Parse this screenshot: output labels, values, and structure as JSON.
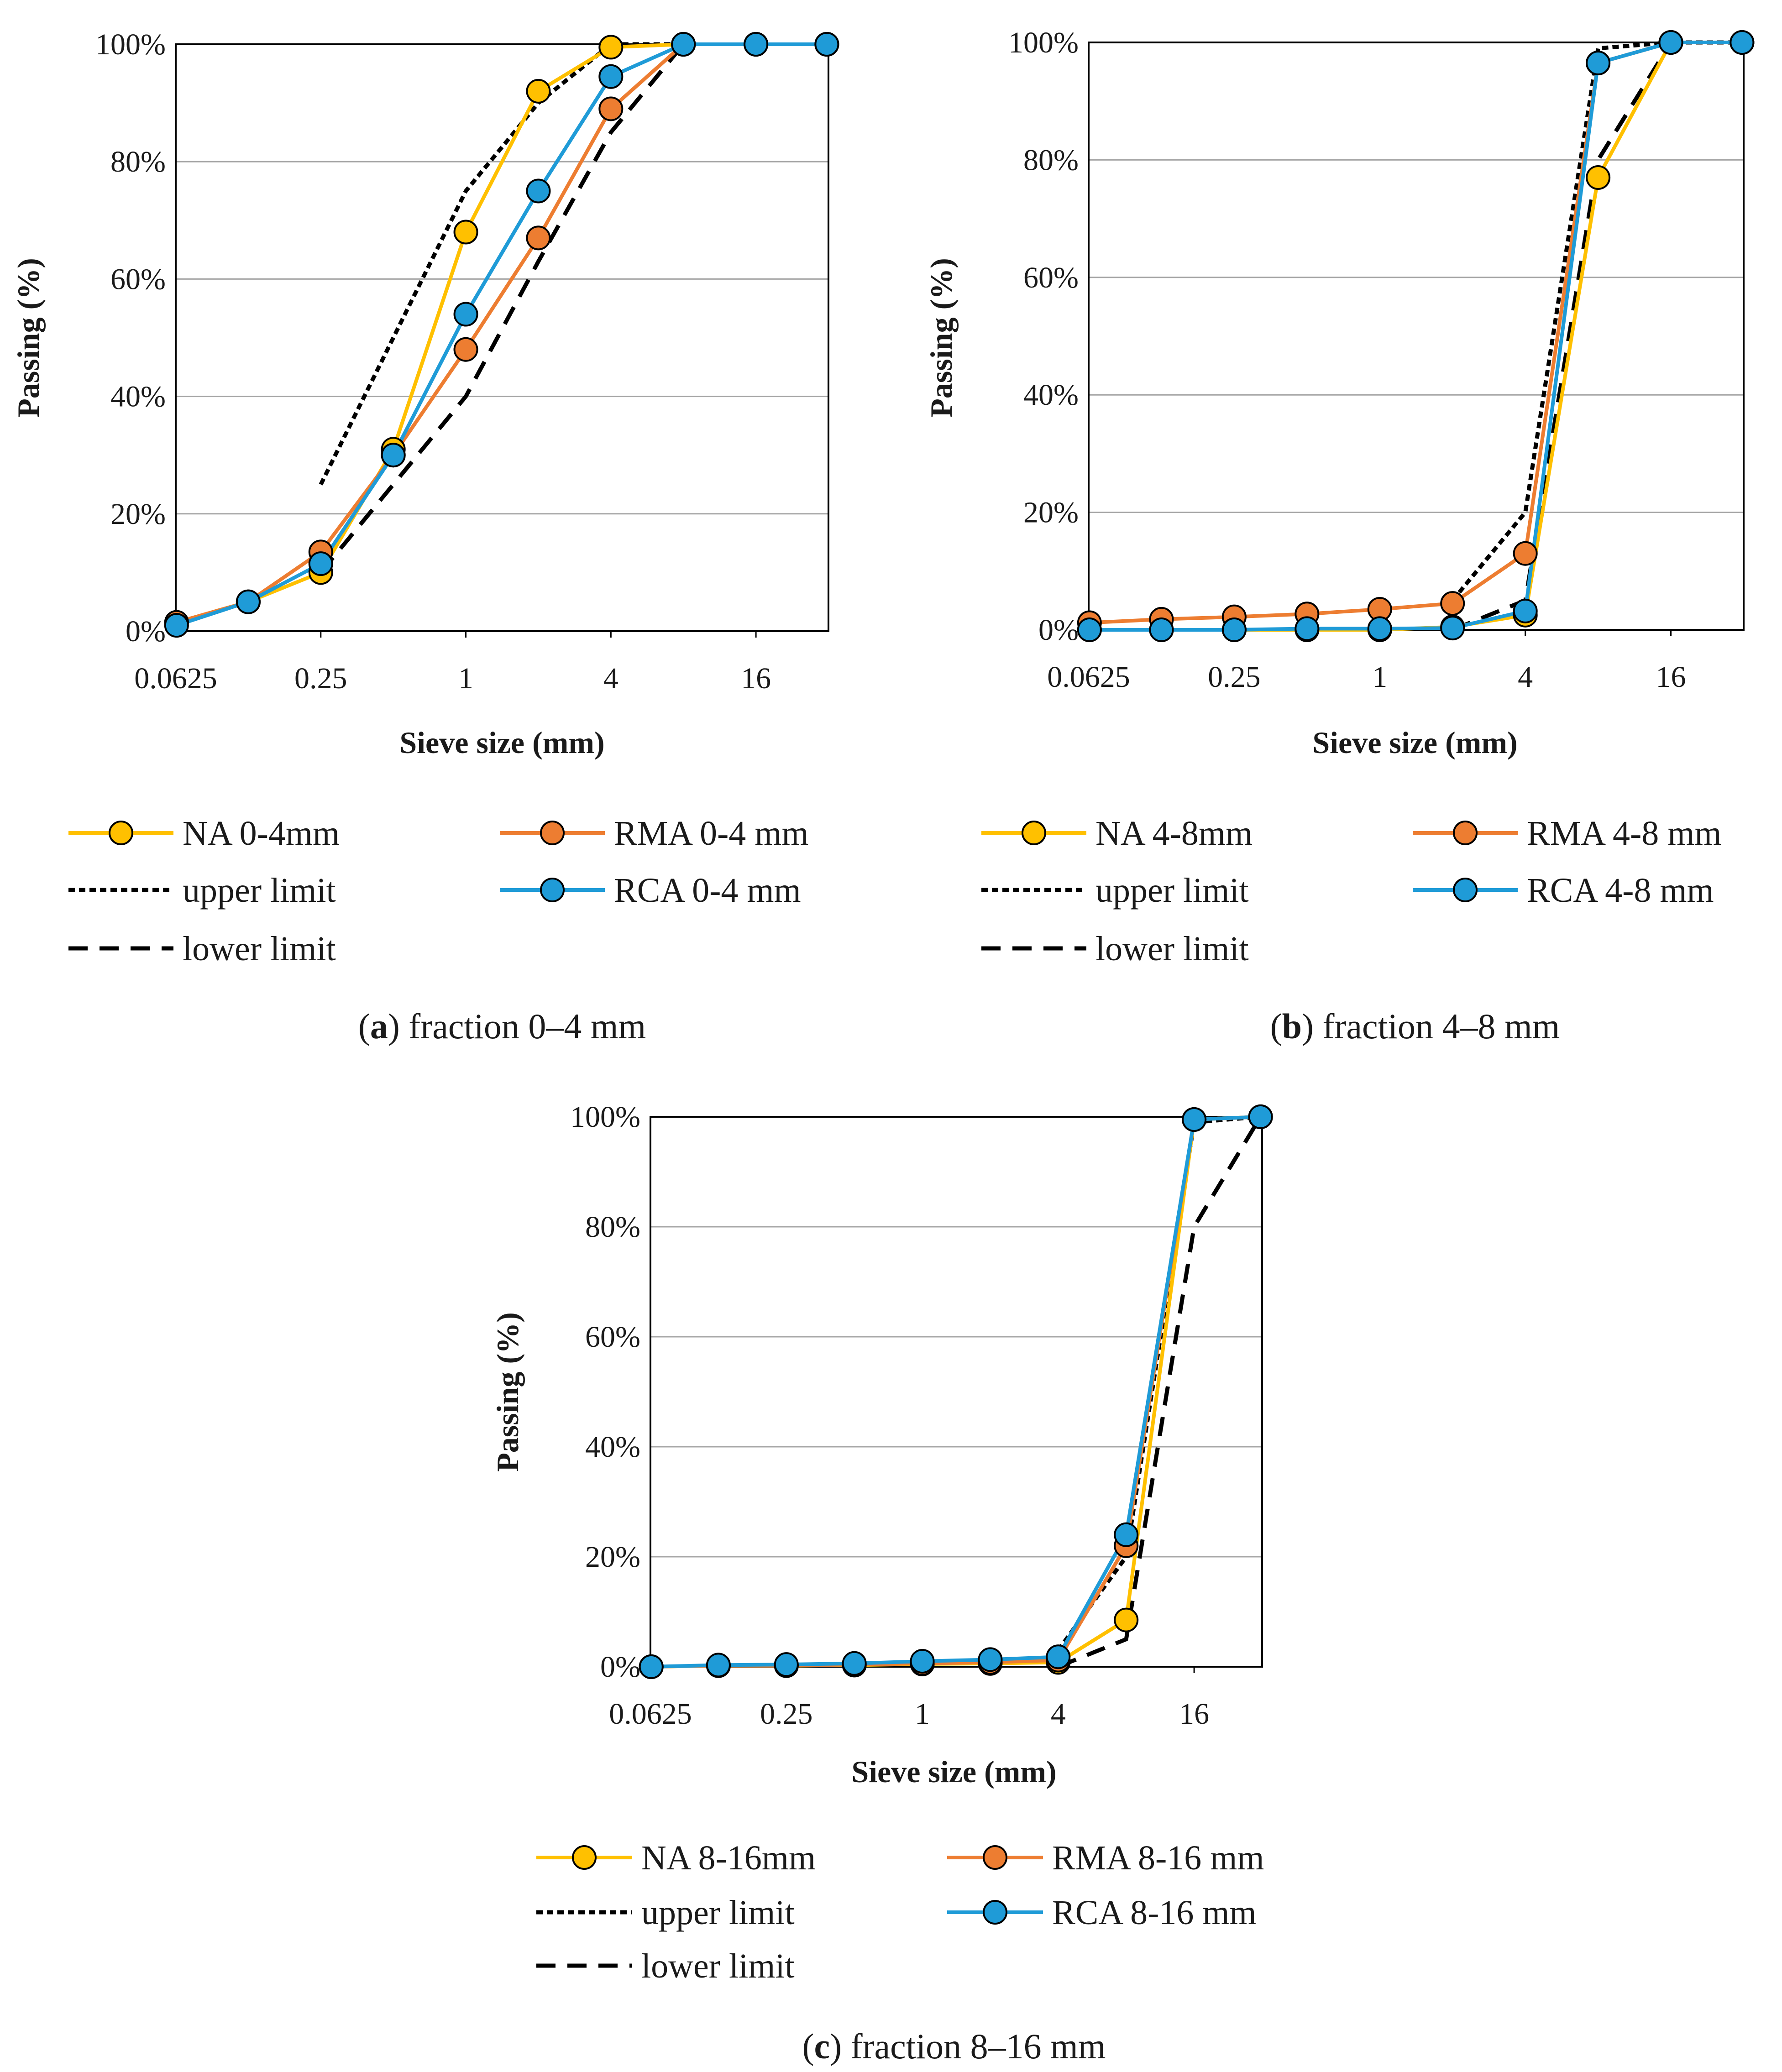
{
  "chart_data": [
    {
      "type": "line",
      "id": "a",
      "caption_label": "a",
      "caption_text": "fraction 0–4 mm",
      "xlabel": "Sieve size (mm)",
      "ylabel": "Passing (%)",
      "x_scale": "log2",
      "xlim": [
        0.0625,
        32
      ],
      "ylim": [
        0,
        100
      ],
      "x_ticks": [
        0.0625,
        0.25,
        1,
        4,
        16
      ],
      "x_tick_labels": [
        "0.0625",
        "0.25",
        "1",
        "4",
        "16"
      ],
      "y_ticks": [
        0,
        20,
        40,
        60,
        80,
        100
      ],
      "y_tick_labels": [
        "0%",
        "20%",
        "40%",
        "60%",
        "80%",
        "100%"
      ],
      "grid": true,
      "series": [
        {
          "name": "NA 0-4mm",
          "color": "#FFC000",
          "marker": true,
          "dash": "solid",
          "x": [
            0.063,
            0.125,
            0.25,
            0.5,
            1,
            2,
            4,
            8,
            16,
            31.5
          ],
          "y": [
            1.5,
            5,
            10,
            31,
            68,
            92,
            99.5,
            100,
            100,
            100
          ]
        },
        {
          "name": "RMA 0-4 mm",
          "color": "#ED7D31",
          "marker": true,
          "dash": "solid",
          "x": [
            0.063,
            0.125,
            0.25,
            0.5,
            1,
            2,
            4,
            8,
            16,
            31.5
          ],
          "y": [
            1.5,
            5,
            13.5,
            30,
            48,
            67,
            89,
            100,
            100,
            100
          ]
        },
        {
          "name": "upper limit",
          "color": "#000000",
          "marker": false,
          "dash": "short",
          "x": [
            0.25,
            1,
            2,
            4,
            8
          ],
          "y": [
            25,
            75,
            90,
            100,
            100
          ]
        },
        {
          "name": "RCA 0-4 mm",
          "color": "#1F9BD7",
          "marker": true,
          "dash": "solid",
          "x": [
            0.063,
            0.125,
            0.25,
            0.5,
            1,
            2,
            4,
            8,
            16,
            31.5
          ],
          "y": [
            1,
            5,
            11.5,
            30,
            54,
            75,
            94.5,
            100,
            100,
            100
          ]
        },
        {
          "name": "lower limit",
          "color": "#000000",
          "marker": false,
          "dash": "long",
          "x": [
            0.25,
            0.5,
            1,
            2,
            4,
            8
          ],
          "y": [
            10,
            25,
            40,
            63,
            85,
            100
          ]
        }
      ]
    },
    {
      "type": "line",
      "id": "b",
      "caption_label": "b",
      "caption_text": "fraction 4–8 mm",
      "xlabel": "Sieve size (mm)",
      "ylabel": "Passing (%)",
      "x_scale": "log2",
      "xlim": [
        0.0625,
        32
      ],
      "ylim": [
        0,
        100
      ],
      "x_ticks": [
        0.0625,
        0.25,
        1,
        4,
        16
      ],
      "x_tick_labels": [
        "0.0625",
        "0.25",
        "1",
        "4",
        "16"
      ],
      "y_ticks": [
        0,
        20,
        40,
        60,
        80,
        100
      ],
      "y_tick_labels": [
        "0%",
        "20%",
        "40%",
        "60%",
        "80%",
        "100%"
      ],
      "grid": true,
      "series": [
        {
          "name": "NA 4-8mm",
          "color": "#FFC000",
          "marker": true,
          "dash": "solid",
          "x": [
            0.063,
            0.125,
            0.25,
            0.5,
            1,
            2,
            4,
            8,
            16,
            31.5
          ],
          "y": [
            0,
            0,
            0,
            0,
            0,
            0.5,
            2.5,
            77,
            100,
            100
          ]
        },
        {
          "name": "RMA 4-8 mm",
          "color": "#ED7D31",
          "marker": true,
          "dash": "solid",
          "x": [
            0.063,
            0.125,
            0.25,
            0.5,
            1,
            2,
            4,
            8,
            16,
            31.5
          ],
          "y": [
            1.2,
            1.8,
            2.2,
            2.7,
            3.5,
            4.5,
            13,
            96.5,
            100,
            100
          ]
        },
        {
          "name": "upper limit",
          "color": "#000000",
          "marker": false,
          "dash": "short",
          "x": [
            2,
            4,
            8,
            16,
            31.5
          ],
          "y": [
            5,
            20,
            99,
            100,
            100
          ]
        },
        {
          "name": "RCA 4-8 mm",
          "color": "#1F9BD7",
          "marker": true,
          "dash": "solid",
          "x": [
            0.063,
            0.125,
            0.25,
            0.5,
            1,
            2,
            4,
            8,
            16,
            31.5
          ],
          "y": [
            0,
            0,
            0,
            0.2,
            0.2,
            0.3,
            3.2,
            96.5,
            100,
            100
          ]
        },
        {
          "name": "lower limit",
          "color": "#000000",
          "marker": false,
          "dash": "long",
          "x": [
            2,
            4,
            8,
            16
          ],
          "y": [
            0,
            5,
            80,
            100
          ]
        }
      ]
    },
    {
      "type": "line",
      "id": "c",
      "caption_label": "c",
      "caption_text": "fraction 8–16 mm",
      "xlabel": "Sieve size (mm)",
      "ylabel": "Passing (%)",
      "x_scale": "log2",
      "xlim": [
        0.0625,
        32
      ],
      "ylim": [
        0,
        100
      ],
      "x_ticks": [
        0.0625,
        0.25,
        1,
        4,
        16
      ],
      "x_tick_labels": [
        "0.0625",
        "0.25",
        "1",
        "4",
        "16"
      ],
      "y_ticks": [
        0,
        20,
        40,
        60,
        80,
        100
      ],
      "y_tick_labels": [
        "0%",
        "20%",
        "40%",
        "60%",
        "80%",
        "100%"
      ],
      "grid": true,
      "series": [
        {
          "name": "NA 8-16mm",
          "color": "#FFC000",
          "marker": true,
          "dash": "solid",
          "x": [
            0.063,
            0.125,
            0.25,
            0.5,
            1,
            2,
            4,
            8,
            16,
            31.5
          ],
          "y": [
            0,
            0.2,
            0.2,
            0.3,
            0.5,
            0.6,
            0.8,
            8.5,
            99.5,
            100
          ]
        },
        {
          "name": "RMA 8-16 mm",
          "color": "#ED7D31",
          "marker": true,
          "dash": "solid",
          "x": [
            0.063,
            0.125,
            0.25,
            0.5,
            1,
            2,
            4,
            8,
            16,
            31.5
          ],
          "y": [
            0,
            0.2,
            0.2,
            0.4,
            0.6,
            0.8,
            1.2,
            22,
            99.5,
            100
          ]
        },
        {
          "name": "upper limit",
          "color": "#000000",
          "marker": false,
          "dash": "short",
          "x": [
            4,
            8,
            16,
            31.5
          ],
          "y": [
            3,
            20,
            99,
            100
          ]
        },
        {
          "name": "RCA 8-16 mm",
          "color": "#1F9BD7",
          "marker": true,
          "dash": "solid",
          "x": [
            0.063,
            0.125,
            0.25,
            0.5,
            1,
            2,
            4,
            8,
            16,
            31.5
          ],
          "y": [
            0,
            0.3,
            0.4,
            0.6,
            1,
            1.3,
            1.8,
            24,
            99.5,
            100
          ]
        },
        {
          "name": "lower limit",
          "color": "#000000",
          "marker": false,
          "dash": "long",
          "x": [
            4,
            8,
            16,
            31.5
          ],
          "y": [
            0,
            5,
            80,
            100
          ]
        }
      ]
    }
  ]
}
